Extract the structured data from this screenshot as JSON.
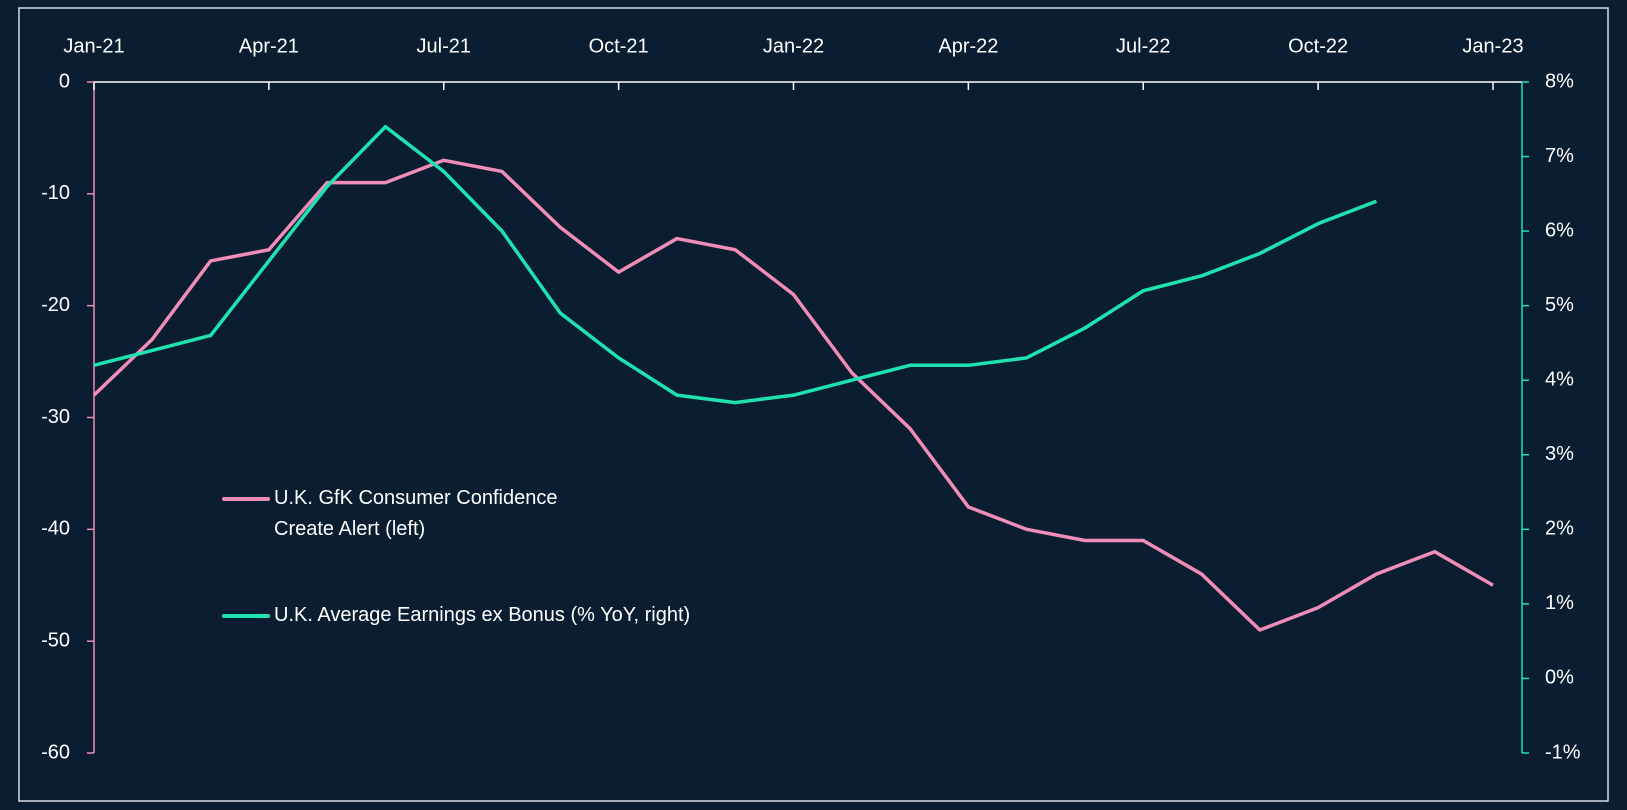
{
  "chart_data": {
    "type": "line",
    "x": [
      "2021-01",
      "2021-02",
      "2021-03",
      "2021-04",
      "2021-05",
      "2021-06",
      "2021-07",
      "2021-08",
      "2021-09",
      "2021-10",
      "2021-11",
      "2021-12",
      "2022-01",
      "2022-02",
      "2022-03",
      "2022-04",
      "2022-05",
      "2022-06",
      "2022-07",
      "2022-08",
      "2022-09",
      "2022-10",
      "2022-11",
      "2022-12",
      "2023-01"
    ],
    "xticks": [
      {
        "value": "2021-01",
        "label": "Jan-21"
      },
      {
        "value": "2021-04",
        "label": "Apr-21"
      },
      {
        "value": "2021-07",
        "label": "Jul-21"
      },
      {
        "value": "2021-10",
        "label": "Oct-21"
      },
      {
        "value": "2022-01",
        "label": "Jan-22"
      },
      {
        "value": "2022-04",
        "label": "Apr-22"
      },
      {
        "value": "2022-07",
        "label": "Jul-22"
      },
      {
        "value": "2022-10",
        "label": "Oct-22"
      },
      {
        "value": "2023-01",
        "label": "Jan-23"
      }
    ],
    "ylim": [
      -60,
      0
    ],
    "yticks": [
      0,
      -10,
      -20,
      -30,
      -40,
      -50,
      -60
    ],
    "y2lim": [
      -1,
      8
    ],
    "y2ticks": [
      {
        "value": 8,
        "label": "8%"
      },
      {
        "value": 7,
        "label": "7%"
      },
      {
        "value": 6,
        "label": "6%"
      },
      {
        "value": 5,
        "label": "5%"
      },
      {
        "value": 4,
        "label": "4%"
      },
      {
        "value": 3,
        "label": "3%"
      },
      {
        "value": 2,
        "label": "2%"
      },
      {
        "value": 1,
        "label": "1%"
      },
      {
        "value": 0,
        "label": "0%"
      },
      {
        "value": -1,
        "label": "-1%"
      }
    ],
    "series": [
      {
        "name": "U.K. GfK Consumer Confidence\nCreate Alert (left)",
        "color": "#f08cb8",
        "values": [
          -28,
          -23,
          -16,
          -15,
          -9,
          -9,
          -7,
          -8,
          -13,
          -17,
          -14,
          -15,
          -19,
          -26,
          -31,
          -38,
          -40,
          -41,
          -41,
          -44,
          -49,
          -47,
          -44,
          -42,
          -45
        ]
      },
      {
        "name": "U.K. Average Earnings ex Bonus (% YoY, right)",
        "color": "#1ee3b0",
        "axis": "y2",
        "values": [
          4.2,
          4.4,
          4.6,
          5.6,
          6.6,
          7.4,
          6.8,
          6.0,
          4.9,
          4.3,
          3.8,
          3.7,
          3.8,
          4.0,
          4.2,
          4.2,
          4.3,
          4.7,
          5.2,
          5.4,
          5.7,
          6.1,
          6.4,
          null,
          null
        ]
      }
    ]
  }
}
